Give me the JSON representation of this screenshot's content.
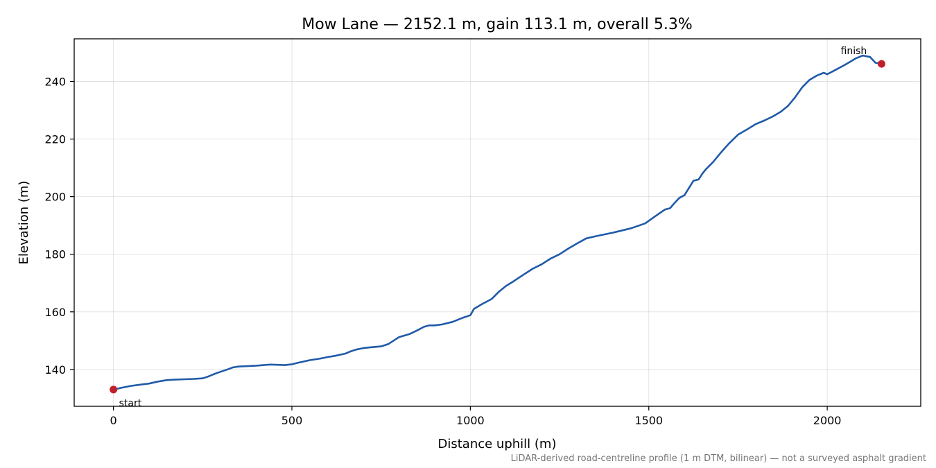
{
  "chart_data": {
    "type": "line",
    "title": "Mow Lane — 2152.1 m, gain 113.1 m, overall 5.3%",
    "xlabel": "Distance uphill (m)",
    "ylabel": "Elevation (m)",
    "xlim": [
      -110,
      2262
    ],
    "ylim": [
      127.2,
      254.8
    ],
    "xticks": [
      0,
      500,
      1000,
      1500,
      2000
    ],
    "yticks": [
      140,
      160,
      180,
      200,
      220,
      240
    ],
    "grid": true,
    "line_color": "#1f5aa8",
    "marker_color": "#c0202a",
    "series": [
      {
        "x": [
          0,
          25,
          50,
          75,
          100,
          125,
          150,
          175,
          200,
          225,
          250,
          265,
          280,
          300,
          320,
          335,
          350,
          400,
          440,
          460,
          480,
          500,
          520,
          550,
          580,
          600,
          620,
          650,
          665,
          680,
          700,
          720,
          750,
          770,
          785,
          800,
          830,
          850,
          870,
          885,
          900,
          920,
          950,
          980,
          1000,
          1010,
          1030,
          1060,
          1080,
          1100,
          1120,
          1150,
          1175,
          1200,
          1225,
          1250,
          1275,
          1300,
          1325,
          1350,
          1400,
          1450,
          1490,
          1510,
          1525,
          1545,
          1560,
          1570,
          1585,
          1600,
          1610,
          1625,
          1640,
          1650,
          1660,
          1680,
          1700,
          1725,
          1750,
          1775,
          1800,
          1825,
          1850,
          1870,
          1890,
          1910,
          1930,
          1950,
          1970,
          1990,
          2000,
          2020,
          2050,
          2080,
          2100,
          2120,
          2135,
          2152.1
        ],
        "y": [
          133.0,
          133.7,
          134.3,
          134.7,
          135.1,
          135.8,
          136.3,
          136.5,
          136.6,
          136.7,
          136.9,
          137.5,
          138.3,
          139.2,
          140.0,
          140.7,
          141.0,
          141.3,
          141.7,
          141.6,
          141.5,
          141.8,
          142.4,
          143.2,
          143.8,
          144.3,
          144.7,
          145.5,
          146.3,
          146.9,
          147.4,
          147.7,
          148.0,
          148.8,
          150.0,
          151.2,
          152.3,
          153.5,
          154.8,
          155.3,
          155.3,
          155.6,
          156.5,
          158.0,
          158.8,
          161.0,
          162.5,
          164.5,
          167.0,
          169.0,
          170.5,
          173.0,
          175.0,
          176.5,
          178.5,
          180.0,
          182.0,
          183.8,
          185.5,
          186.2,
          187.5,
          189.0,
          190.7,
          192.5,
          193.8,
          195.5,
          196.0,
          197.5,
          199.5,
          200.5,
          202.5,
          205.5,
          206.0,
          208.0,
          209.5,
          212.0,
          215.0,
          218.5,
          221.5,
          223.3,
          225.2,
          226.5,
          228.0,
          229.5,
          231.5,
          234.5,
          238.0,
          240.5,
          242.0,
          243.0,
          242.5,
          243.8,
          245.8,
          248.0,
          249.0,
          248.5,
          246.5,
          246.1
        ]
      }
    ],
    "annotations": [
      {
        "text": "start",
        "x": 0,
        "y": 133.0
      },
      {
        "text": "finish",
        "x": 2152.1,
        "y": 246.1
      }
    ],
    "footnote": "LiDAR-derived road-centreline profile (1 m DTM, bilinear) — not a surveyed asphalt gradient"
  }
}
